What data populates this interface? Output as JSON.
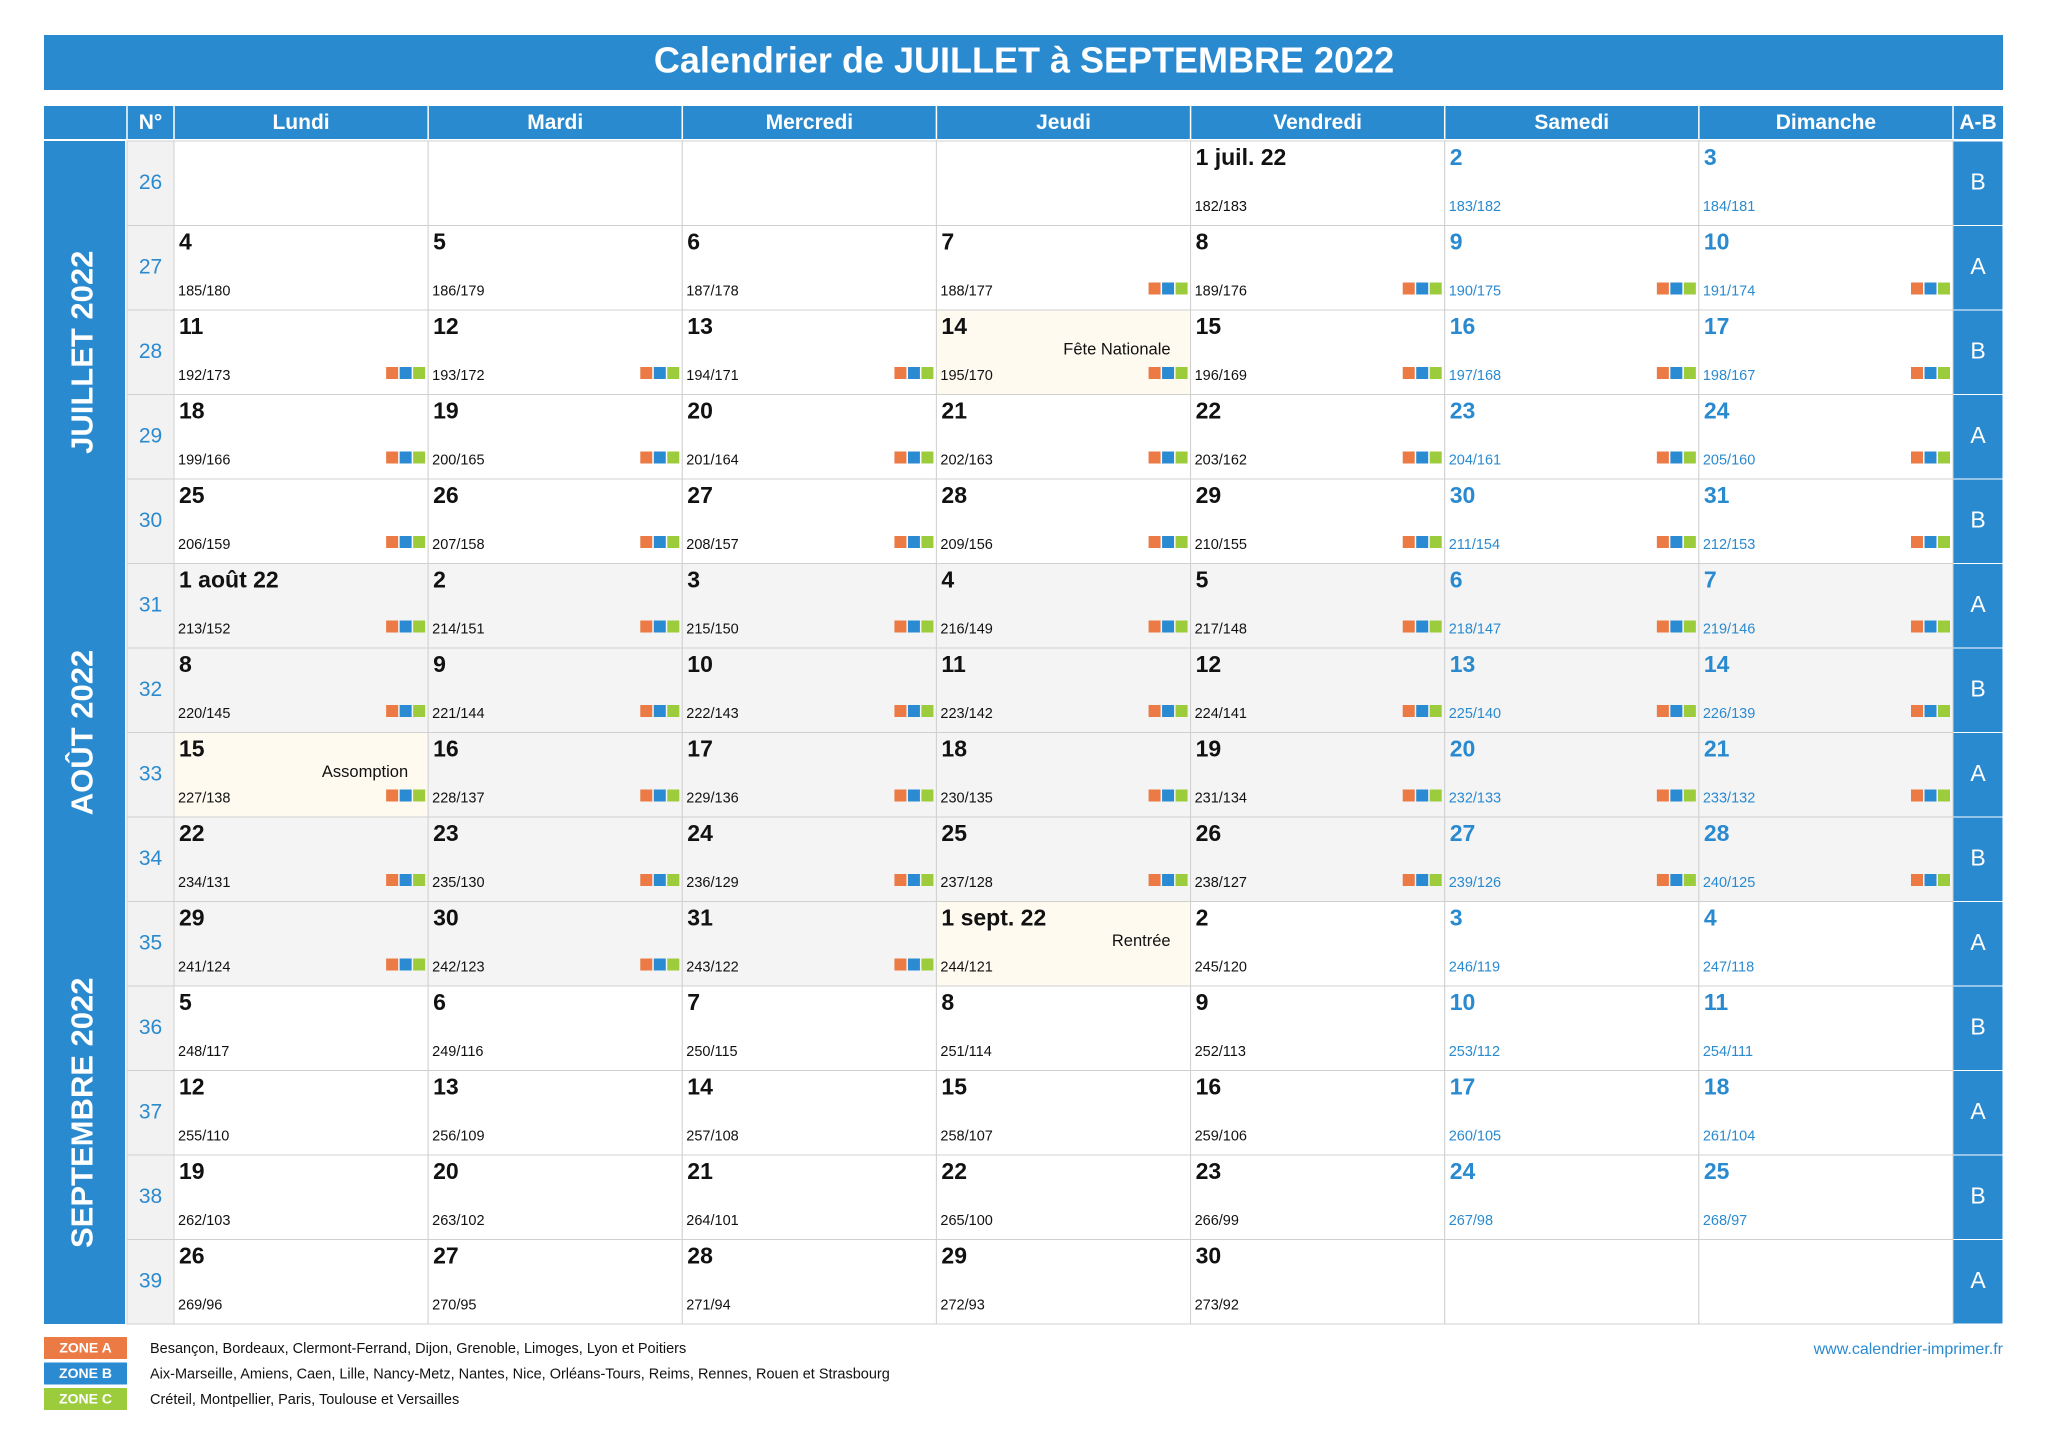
{
  "title": "Calendrier de JUILLET à SEPTEMBRE 2022",
  "header": {
    "week": "N°",
    "days": [
      "Lundi",
      "Mardi",
      "Mercredi",
      "Jeudi",
      "Vendredi",
      "Samedi",
      "Dimanche"
    ],
    "ab": "A-B"
  },
  "months": [
    "JUILLET 2022",
    "AOÛT 2022",
    "SEPTEMBRE 2022"
  ],
  "weeks": [
    {
      "number": "26",
      "ab": "B",
      "cells": [
        null,
        null,
        null,
        null,
        {
          "day": "1 juil. 22",
          "count": "182/183"
        },
        {
          "day": "2",
          "count": "183/182"
        },
        {
          "day": "3",
          "count": "184/181"
        }
      ]
    },
    {
      "number": "27",
      "ab": "A",
      "cells": [
        {
          "day": "4",
          "count": "185/180"
        },
        {
          "day": "5",
          "count": "186/179"
        },
        {
          "day": "6",
          "count": "187/178"
        },
        {
          "day": "7",
          "count": "188/177",
          "zones": [
            0,
            1,
            2
          ]
        },
        {
          "day": "8",
          "count": "189/176",
          "zones": [
            0,
            1,
            2
          ]
        },
        {
          "day": "9",
          "count": "190/175",
          "zones": [
            0,
            1,
            2
          ]
        },
        {
          "day": "10",
          "count": "191/174",
          "zones": [
            0,
            1,
            2
          ]
        }
      ]
    },
    {
      "number": "28",
      "ab": "B",
      "cells": [
        {
          "day": "11",
          "count": "192/173",
          "zones": [
            0,
            1,
            2
          ]
        },
        {
          "day": "12",
          "count": "193/172",
          "zones": [
            0,
            1,
            2
          ]
        },
        {
          "day": "13",
          "count": "194/171",
          "zones": [
            0,
            1,
            2
          ]
        },
        {
          "day": "14",
          "count": "195/170",
          "zones": [
            0,
            1,
            2
          ],
          "note": "Fête Nationale"
        },
        {
          "day": "15",
          "count": "196/169",
          "zones": [
            0,
            1,
            2
          ]
        },
        {
          "day": "16",
          "count": "197/168",
          "zones": [
            0,
            1,
            2
          ]
        },
        {
          "day": "17",
          "count": "198/167",
          "zones": [
            0,
            1,
            2
          ]
        }
      ]
    },
    {
      "number": "29",
      "ab": "A",
      "cells": [
        {
          "day": "18",
          "count": "199/166",
          "zones": [
            0,
            1,
            2
          ]
        },
        {
          "day": "19",
          "count": "200/165",
          "zones": [
            0,
            1,
            2
          ]
        },
        {
          "day": "20",
          "count": "201/164",
          "zones": [
            0,
            1,
            2
          ]
        },
        {
          "day": "21",
          "count": "202/163",
          "zones": [
            0,
            1,
            2
          ]
        },
        {
          "day": "22",
          "count": "203/162",
          "zones": [
            0,
            1,
            2
          ]
        },
        {
          "day": "23",
          "count": "204/161",
          "zones": [
            0,
            1,
            2
          ]
        },
        {
          "day": "24",
          "count": "205/160",
          "zones": [
            0,
            1,
            2
          ]
        }
      ]
    },
    {
      "number": "30",
      "ab": "B",
      "cells": [
        {
          "day": "25",
          "count": "206/159",
          "zones": [
            0,
            1,
            2
          ]
        },
        {
          "day": "26",
          "count": "207/158",
          "zones": [
            0,
            1,
            2
          ]
        },
        {
          "day": "27",
          "count": "208/157",
          "zones": [
            0,
            1,
            2
          ]
        },
        {
          "day": "28",
          "count": "209/156",
          "zones": [
            0,
            1,
            2
          ]
        },
        {
          "day": "29",
          "count": "210/155",
          "zones": [
            0,
            1,
            2
          ]
        },
        {
          "day": "30",
          "count": "211/154",
          "zones": [
            0,
            1,
            2
          ]
        },
        {
          "day": "31",
          "count": "212/153",
          "zones": [
            0,
            1,
            2
          ]
        }
      ]
    },
    {
      "number": "31",
      "ab": "A",
      "cells": [
        {
          "day": "1 août 22",
          "count": "213/152",
          "zones": [
            0,
            1,
            2
          ]
        },
        {
          "day": "2",
          "count": "214/151",
          "zones": [
            0,
            1,
            2
          ]
        },
        {
          "day": "3",
          "count": "215/150",
          "zones": [
            0,
            1,
            2
          ]
        },
        {
          "day": "4",
          "count": "216/149",
          "zones": [
            0,
            1,
            2
          ]
        },
        {
          "day": "5",
          "count": "217/148",
          "zones": [
            0,
            1,
            2
          ]
        },
        {
          "day": "6",
          "count": "218/147",
          "zones": [
            0,
            1,
            2
          ]
        },
        {
          "day": "7",
          "count": "219/146",
          "zones": [
            0,
            1,
            2
          ]
        }
      ]
    },
    {
      "number": "32",
      "ab": "B",
      "cells": [
        {
          "day": "8",
          "count": "220/145",
          "zones": [
            0,
            1,
            2
          ]
        },
        {
          "day": "9",
          "count": "221/144",
          "zones": [
            0,
            1,
            2
          ]
        },
        {
          "day": "10",
          "count": "222/143",
          "zones": [
            0,
            1,
            2
          ]
        },
        {
          "day": "11",
          "count": "223/142",
          "zones": [
            0,
            1,
            2
          ]
        },
        {
          "day": "12",
          "count": "224/141",
          "zones": [
            0,
            1,
            2
          ]
        },
        {
          "day": "13",
          "count": "225/140",
          "zones": [
            0,
            1,
            2
          ]
        },
        {
          "day": "14",
          "count": "226/139",
          "zones": [
            0,
            1,
            2
          ]
        }
      ]
    },
    {
      "number": "33",
      "ab": "A",
      "cells": [
        {
          "day": "15",
          "count": "227/138",
          "zones": [
            0,
            1,
            2
          ],
          "note": "Assomption"
        },
        {
          "day": "16",
          "count": "228/137",
          "zones": [
            0,
            1,
            2
          ]
        },
        {
          "day": "17",
          "count": "229/136",
          "zones": [
            0,
            1,
            2
          ]
        },
        {
          "day": "18",
          "count": "230/135",
          "zones": [
            0,
            1,
            2
          ]
        },
        {
          "day": "19",
          "count": "231/134",
          "zones": [
            0,
            1,
            2
          ]
        },
        {
          "day": "20",
          "count": "232/133",
          "zones": [
            0,
            1,
            2
          ]
        },
        {
          "day": "21",
          "count": "233/132",
          "zones": [
            0,
            1,
            2
          ]
        }
      ]
    },
    {
      "number": "34",
      "ab": "B",
      "cells": [
        {
          "day": "22",
          "count": "234/131",
          "zones": [
            0,
            1,
            2
          ]
        },
        {
          "day": "23",
          "count": "235/130",
          "zones": [
            0,
            1,
            2
          ]
        },
        {
          "day": "24",
          "count": "236/129",
          "zones": [
            0,
            1,
            2
          ]
        },
        {
          "day": "25",
          "count": "237/128",
          "zones": [
            0,
            1,
            2
          ]
        },
        {
          "day": "26",
          "count": "238/127",
          "zones": [
            0,
            1,
            2
          ]
        },
        {
          "day": "27",
          "count": "239/126",
          "zones": [
            0,
            1,
            2
          ]
        },
        {
          "day": "28",
          "count": "240/125",
          "zones": [
            0,
            1,
            2
          ]
        }
      ]
    },
    {
      "number": "35",
      "ab": "A",
      "cells": [
        {
          "day": "29",
          "count": "241/124",
          "zones": [
            0,
            1,
            2
          ]
        },
        {
          "day": "30",
          "count": "242/123",
          "zones": [
            0,
            1,
            2
          ]
        },
        {
          "day": "31",
          "count": "243/122",
          "zones": [
            0,
            1,
            2
          ]
        },
        {
          "day": "1 sept. 22",
          "count": "244/121",
          "note": "Rentrée"
        },
        {
          "day": "2",
          "count": "245/120"
        },
        {
          "day": "3",
          "count": "246/119"
        },
        {
          "day": "4",
          "count": "247/118"
        }
      ]
    },
    {
      "number": "36",
      "ab": "B",
      "cells": [
        {
          "day": "5",
          "count": "248/117"
        },
        {
          "day": "6",
          "count": "249/116"
        },
        {
          "day": "7",
          "count": "250/115"
        },
        {
          "day": "8",
          "count": "251/114"
        },
        {
          "day": "9",
          "count": "252/113"
        },
        {
          "day": "10",
          "count": "253/112"
        },
        {
          "day": "11",
          "count": "254/111"
        }
      ]
    },
    {
      "number": "37",
      "ab": "A",
      "cells": [
        {
          "day": "12",
          "count": "255/110"
        },
        {
          "day": "13",
          "count": "256/109"
        },
        {
          "day": "14",
          "count": "257/108"
        },
        {
          "day": "15",
          "count": "258/107"
        },
        {
          "day": "16",
          "count": "259/106"
        },
        {
          "day": "17",
          "count": "260/105"
        },
        {
          "day": "18",
          "count": "261/104"
        }
      ]
    },
    {
      "number": "38",
      "ab": "B",
      "cells": [
        {
          "day": "19",
          "count": "262/103"
        },
        {
          "day": "20",
          "count": "263/102"
        },
        {
          "day": "21",
          "count": "264/101"
        },
        {
          "day": "22",
          "count": "265/100"
        },
        {
          "day": "23",
          "count": "266/99"
        },
        {
          "day": "24",
          "count": "267/98"
        },
        {
          "day": "25",
          "count": "268/97"
        }
      ]
    },
    {
      "number": "39",
      "ab": "A",
      "cells": [
        {
          "day": "26",
          "count": "269/96"
        },
        {
          "day": "27",
          "count": "270/95"
        },
        {
          "day": "28",
          "count": "271/94"
        },
        {
          "day": "29",
          "count": "272/93"
        },
        {
          "day": "30",
          "count": "273/92"
        },
        null,
        null
      ]
    }
  ],
  "legend": [
    {
      "label": "ZONE A",
      "color": "#ec7a45",
      "text": "Besançon, Bordeaux, Clermont-Ferrand, Dijon, Grenoble, Limoges, Lyon et Poitiers"
    },
    {
      "label": "ZONE B",
      "color": "#2b8bd2",
      "text": "Aix-Marseille, Amiens, Caen, Lille, Nancy-Metz, Nantes, Nice, Orléans-Tours, Reims, Rennes, Rouen et Strasbourg"
    },
    {
      "label": "ZONE C",
      "color": "#9ccc3c",
      "text": "Créteil, Montpellier, Paris, Toulouse et Versailles"
    }
  ],
  "url": "www.calendrier-imprimer.fr"
}
